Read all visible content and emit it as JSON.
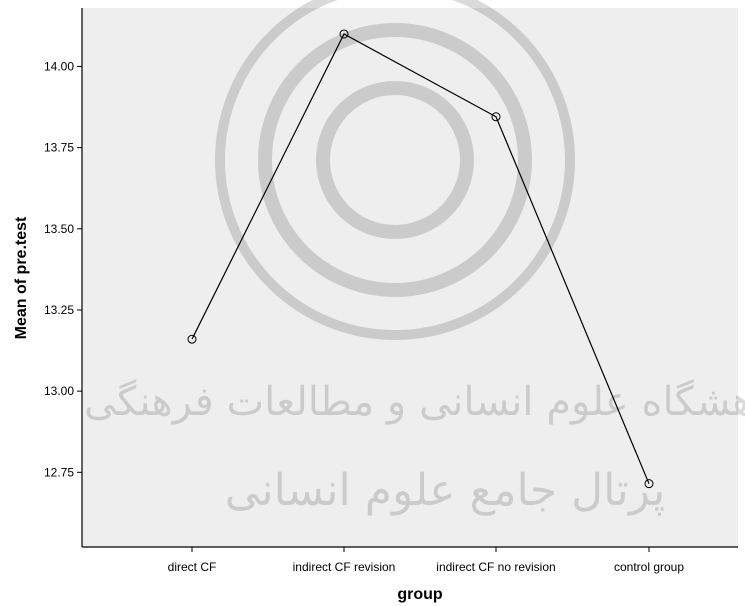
{
  "chart_data": {
    "type": "line",
    "categories": [
      "direct CF",
      "indirect CF revision",
      "indirect CF no revision",
      "control group"
    ],
    "values": [
      13.16,
      14.1,
      13.845,
      12.715
    ],
    "xlabel": "group",
    "ylabel": "Mean of pre.test",
    "ylim": [
      12.52,
      14.18
    ],
    "yticks": [
      12.75,
      13.0,
      13.25,
      13.5,
      13.75,
      14.0
    ],
    "ytick_labels": [
      "12.75",
      "13.00",
      "13.25",
      "13.50",
      "13.75",
      "14.00"
    ],
    "grid": false,
    "legend": "none",
    "colors": {
      "plot_background": "#eeeeee",
      "line": "#000000",
      "marker_edge": "#000000",
      "watermark": "#000000"
    },
    "watermark": {
      "line1": "پژوهشگاه علوم انسانی و مطالعات فرهنگی",
      "line2": "پرتال جامع علوم انسانی"
    }
  }
}
